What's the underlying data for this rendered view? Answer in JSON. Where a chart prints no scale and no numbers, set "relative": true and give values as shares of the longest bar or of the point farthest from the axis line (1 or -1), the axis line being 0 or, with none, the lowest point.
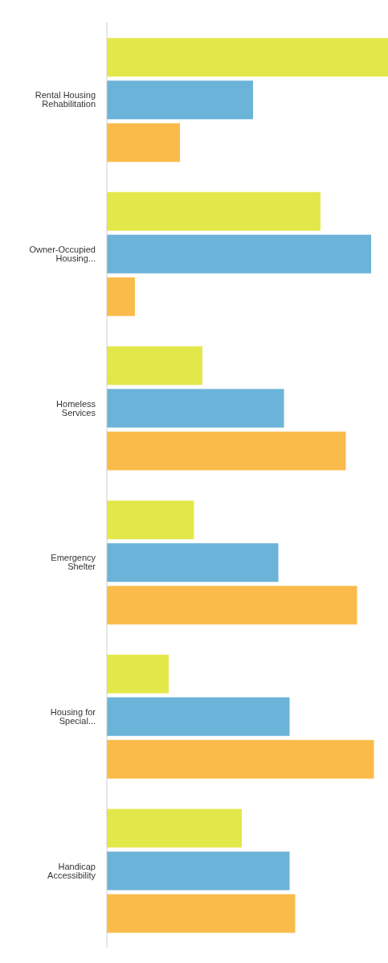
{
  "chart_data": {
    "type": "bar",
    "orientation": "horizontal",
    "relative": true,
    "categories": [
      "Rental Housing Rehabilitation",
      "Owner-Occupied Housing...",
      "Homeless Services",
      "Emergency Shelter",
      "Housing for Special...",
      "Handicap Accessibility"
    ],
    "series": [
      {
        "color": "#e3e84a",
        "values": [
          1,
          0.76,
          0.34,
          0.31,
          0.22,
          0.48
        ]
      },
      {
        "color": "#6bb3d9",
        "values": [
          0.52,
          0.94,
          0.63,
          0.61,
          0.65,
          0.65
        ]
      },
      {
        "color": "#fbbb4a",
        "values": [
          0.26,
          0.1,
          0.85,
          0.89,
          0.95,
          0.67
        ]
      }
    ],
    "grid": false,
    "legend": false
  }
}
